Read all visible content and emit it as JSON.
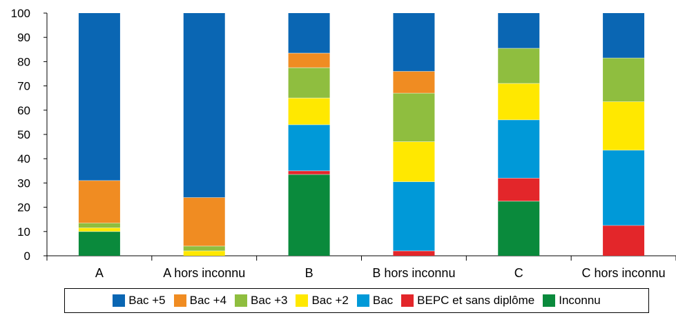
{
  "chart_data": {
    "type": "bar",
    "stacked": true,
    "categories": [
      "A",
      "A hors inconnu",
      "B",
      "B hors inconnu",
      "C",
      "C hors inconnu"
    ],
    "ylim": [
      0,
      100
    ],
    "yticks": [
      0,
      10,
      20,
      30,
      40,
      50,
      60,
      70,
      80,
      90,
      100
    ],
    "title": "",
    "xlabel": "",
    "ylabel": "",
    "grid": false,
    "legend_position": "bottom",
    "series": [
      {
        "name": "Inconnu",
        "color": "#0a8a3c",
        "values": [
          10,
          0,
          33.5,
          0,
          22.5,
          0
        ]
      },
      {
        "name": "BEPC et sans diplôme",
        "color": "#e3262a",
        "values": [
          0,
          0,
          1.5,
          2,
          9.5,
          12.5
        ]
      },
      {
        "name": "Bac",
        "color": "#0099d8",
        "values": [
          0,
          0,
          19,
          28.5,
          24,
          31
        ]
      },
      {
        "name": "Bac +2",
        "color": "#ffe800",
        "values": [
          1.5,
          2,
          11,
          16.5,
          15,
          20
        ]
      },
      {
        "name": "Bac +3",
        "color": "#8fbe3f",
        "values": [
          2,
          2,
          12.5,
          20,
          14.5,
          18
        ]
      },
      {
        "name": "Bac +4",
        "color": "#f08c22",
        "values": [
          17.5,
          20,
          6,
          9,
          0,
          0
        ]
      },
      {
        "name": "Bac +5",
        "color": "#0a66b3",
        "values": [
          69,
          76,
          16.5,
          24,
          14.5,
          18.5
        ]
      }
    ],
    "legend_order": [
      "Bac +5",
      "Bac +4",
      "Bac +3",
      "Bac +2",
      "Bac",
      "BEPC et sans diplôme",
      "Inconnu"
    ]
  }
}
